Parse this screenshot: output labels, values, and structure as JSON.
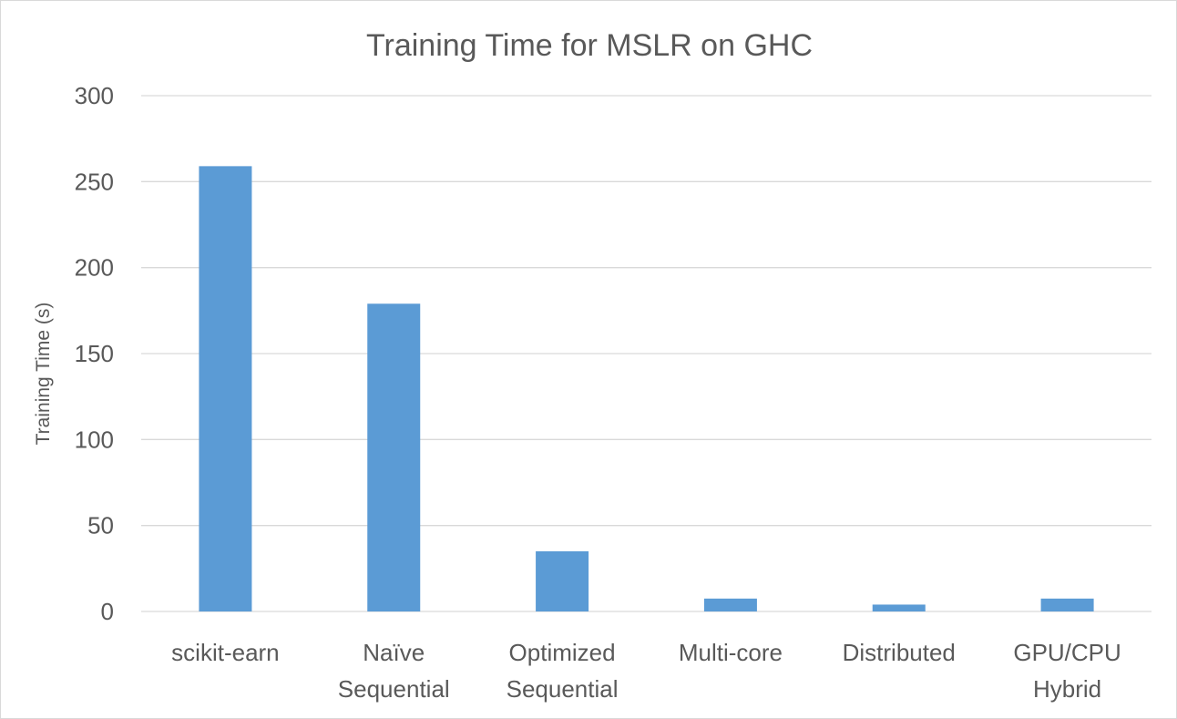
{
  "chart_data": {
    "type": "bar",
    "title": "Training Time for MSLR on GHC",
    "xlabel": "",
    "ylabel": "Training Time (s)",
    "categories": [
      [
        "scikit-earn"
      ],
      [
        "Naïve",
        "Sequential"
      ],
      [
        "Optimized",
        "Sequential"
      ],
      [
        "Multi-core"
      ],
      [
        "Distributed"
      ],
      [
        "GPU/CPU",
        "Hybrid"
      ]
    ],
    "values": [
      259,
      179,
      35,
      7.5,
      4,
      7.5
    ],
    "ylim": [
      0,
      300
    ],
    "yticks": [
      0,
      50,
      100,
      150,
      200,
      250,
      300
    ],
    "grid": true,
    "legend": "none",
    "bar_color": "#5b9bd5"
  }
}
